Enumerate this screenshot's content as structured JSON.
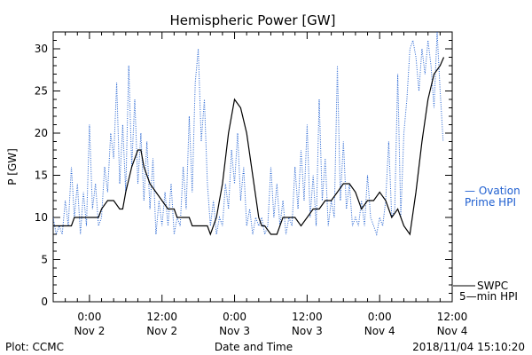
{
  "chart_data": {
    "type": "line",
    "title": "Hemispheric Power [GW]",
    "xlabel": "Date and Time",
    "ylabel": "P [GW]",
    "ylim": [
      0,
      32
    ],
    "yticks": [
      0,
      5,
      10,
      15,
      20,
      25,
      30
    ],
    "xlim": [
      -6,
      60
    ],
    "x_units": "hours from 2018/11/02 00:00 UT",
    "x_ticks": [
      {
        "x": 0,
        "time": "0:00",
        "date": "Nov 2"
      },
      {
        "x": 12,
        "time": "12:00",
        "date": "Nov 2"
      },
      {
        "x": 24,
        "time": "0:00",
        "date": "Nov 3"
      },
      {
        "x": 36,
        "time": "12:00",
        "date": "Nov 3"
      },
      {
        "x": 48,
        "time": "0:00",
        "date": "Nov 4"
      },
      {
        "x": 60,
        "time": "12:00",
        "date": "Nov 4"
      }
    ],
    "grid": false,
    "colors": {
      "swpc": "#000000",
      "ovation": "#1f5fd0"
    },
    "series": [
      {
        "name": "SWPC 5-min HPI",
        "style": "solid",
        "x": [
          -6,
          -3,
          -2.5,
          -1,
          0,
          1.5,
          2,
          3,
          4,
          5,
          5.5,
          6,
          7,
          8,
          8.5,
          9,
          10,
          11,
          12,
          13,
          14,
          14.5,
          15,
          16,
          16.5,
          17,
          18,
          19,
          19.5,
          20,
          21,
          22,
          23,
          24,
          25,
          26,
          27,
          28,
          28.5,
          29,
          30,
          31,
          32,
          33,
          34,
          35,
          36,
          37,
          38,
          39,
          40,
          41,
          42,
          43,
          44,
          45,
          46,
          47,
          48,
          49,
          50,
          51,
          52,
          53,
          54,
          55,
          56,
          57,
          58,
          58.6
        ],
        "y": [
          9,
          9,
          10,
          10,
          10,
          10,
          11,
          12,
          12,
          11,
          11,
          13,
          16,
          18,
          18,
          16,
          14,
          13,
          12,
          11,
          11,
          10,
          10,
          10,
          10,
          9,
          9,
          9,
          9,
          8,
          10,
          14,
          20,
          24,
          23,
          20,
          15,
          10,
          9,
          9,
          8,
          8,
          10,
          10,
          10,
          9,
          10,
          11,
          11,
          12,
          12,
          13,
          14,
          14,
          13,
          11,
          12,
          12,
          13,
          12,
          10,
          11,
          9,
          8,
          13,
          19,
          24,
          27,
          28,
          29
        ],
        "x_offset": 0
      },
      {
        "name": "Ovation Prime HPI",
        "style": "dotted",
        "x": [
          -6,
          -5.5,
          -5,
          -4.5,
          -4,
          -3.5,
          -3,
          -2.5,
          -2,
          -1.5,
          -1,
          -0.5,
          0,
          0.5,
          1,
          1.5,
          2,
          2.5,
          3,
          3.5,
          4,
          4.5,
          5,
          5.5,
          6,
          6.5,
          7,
          7.5,
          8,
          8.5,
          9,
          9.5,
          10,
          10.5,
          11,
          11.5,
          12,
          12.5,
          13,
          13.5,
          14,
          14.5,
          15,
          15.5,
          16,
          16.5,
          17,
          17.5,
          18,
          18.5,
          19,
          19.5,
          20,
          20.5,
          21,
          21.5,
          22,
          22.5,
          23,
          23.5,
          24,
          24.5,
          25,
          25.5,
          26,
          26.5,
          27,
          27.5,
          28,
          28.5,
          29,
          29.5,
          30,
          30.5,
          31,
          31.5,
          32,
          32.5,
          33,
          33.5,
          34,
          34.5,
          35,
          35.5,
          36,
          36.5,
          37,
          37.5,
          38,
          38.5,
          39,
          39.5,
          40,
          40.5,
          41,
          41.5,
          42,
          42.5,
          43,
          43.5,
          44,
          44.5,
          45,
          45.5,
          46,
          46.5,
          47,
          47.5,
          48,
          48.5,
          49,
          49.5,
          50,
          50.5,
          51,
          51.5,
          52,
          52.5,
          53,
          53.5,
          54,
          54.5,
          55,
          55.5,
          56,
          56.5,
          57,
          57.5,
          58,
          58.5
        ],
        "y": [
          10,
          8,
          9,
          8,
          12,
          9,
          16,
          10,
          14,
          8,
          13,
          9,
          21,
          11,
          14,
          9,
          10,
          16,
          13,
          20,
          17,
          26,
          14,
          21,
          13,
          28,
          16,
          24,
          14,
          20,
          12,
          19,
          11,
          17,
          8,
          12,
          9,
          13,
          9,
          14,
          8,
          10,
          9,
          16,
          11,
          22,
          13,
          26,
          30,
          19,
          24,
          14,
          9,
          12,
          8,
          10,
          9,
          14,
          11,
          18,
          14,
          20,
          12,
          16,
          9,
          11,
          8,
          10,
          9,
          10,
          8,
          9,
          16,
          10,
          14,
          9,
          12,
          8,
          10,
          9,
          16,
          11,
          18,
          12,
          21,
          10,
          15,
          9,
          24,
          12,
          17,
          9,
          12,
          10,
          28,
          12,
          19,
          11,
          14,
          9,
          10,
          9,
          12,
          9,
          15,
          10,
          9,
          8,
          10,
          9,
          12,
          19,
          10,
          11,
          27,
          10,
          20,
          24,
          30,
          31,
          29,
          25,
          30,
          27,
          31,
          28,
          23,
          32,
          25,
          19
        ],
        "x_offset": 0
      }
    ],
    "legend": [
      {
        "label_line1": "— Ovation",
        "label_line2": "Prime HPI",
        "color": "#1f5fd0",
        "placement": "right"
      },
      {
        "label_line1": "SWPC",
        "label_line2": "5—min HPI",
        "color": "#000000",
        "placement": "right"
      }
    ]
  },
  "footer": {
    "left": "Plot: CCMC",
    "center": "Date and Time",
    "right": "2018/11/04 15:10:20"
  }
}
